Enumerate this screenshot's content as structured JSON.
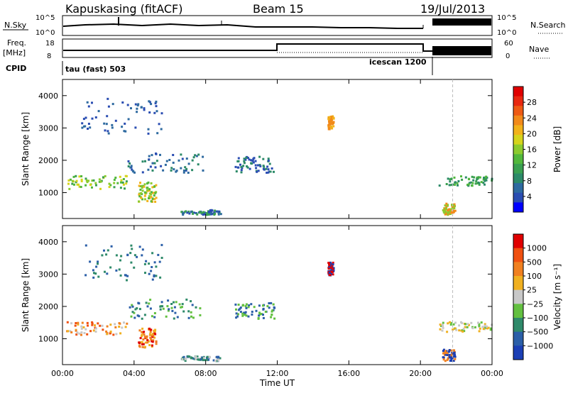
{
  "header": {
    "station": "Kapuskasing (fitACF)",
    "beam": "Beam 15",
    "date": "19/Jul/2013"
  },
  "strips": {
    "nsky_label": "N.Sky",
    "nsearch_label": "N.Search",
    "noise_ticks": [
      "10^5",
      "10^0"
    ],
    "freq_label": "Freq.",
    "freq_unit": "[MHz]",
    "freq_ticks": [
      "18",
      "8"
    ],
    "nave_label": "Nave",
    "nave_ticks": [
      "60",
      "0"
    ],
    "cpid_label": "CPID",
    "cpid_segments": [
      "tau (fast) 503",
      "icescan 1200"
    ]
  },
  "chart_data": [
    {
      "type": "heatmap",
      "panel": "power",
      "ylabel": "Slant Range [km]",
      "xlabel": "",
      "ylim": [
        200,
        4500
      ],
      "yticks": [
        1000,
        2000,
        3000,
        4000
      ],
      "xticks": [
        "00:00",
        "04:00",
        "08:00",
        "12:00",
        "16:00",
        "20:00",
        "00:00"
      ],
      "xlim_hours": [
        0,
        24
      ],
      "colorbar": {
        "label": "Power [dB]",
        "ticks": [
          "28",
          "24",
          "20",
          "16",
          "12",
          "8",
          "4"
        ],
        "colors": [
          "#0000ff",
          "#2a4db2",
          "#2e6aa0",
          "#2c8a68",
          "#3aa050",
          "#52b83c",
          "#8ccb2e",
          "#d6d41c",
          "#f2b21a",
          "#f28a1a",
          "#ee5a14",
          "#e82810",
          "#e00000"
        ]
      }
    },
    {
      "type": "heatmap",
      "panel": "velocity",
      "ylabel": "Slant Range [km]",
      "xlabel": "Time UT",
      "ylim": [
        200,
        4500
      ],
      "yticks": [
        1000,
        2000,
        3000,
        4000
      ],
      "xticks": [
        "00:00",
        "04:00",
        "08:00",
        "12:00",
        "16:00",
        "20:00",
        "00:00"
      ],
      "xlim_hours": [
        0,
        24
      ],
      "colorbar": {
        "label": "Velocity [m s⁻¹]",
        "ticks": [
          "1000",
          "500",
          "100",
          "25",
          "−25",
          "−100",
          "−500",
          "−1000"
        ],
        "colors": [
          "#1b3fb5",
          "#2b5fa8",
          "#2f8a6a",
          "#63c040",
          "#c8c8c8",
          "#f0b020",
          "#f08020",
          "#f05010",
          "#e00000"
        ]
      }
    }
  ]
}
